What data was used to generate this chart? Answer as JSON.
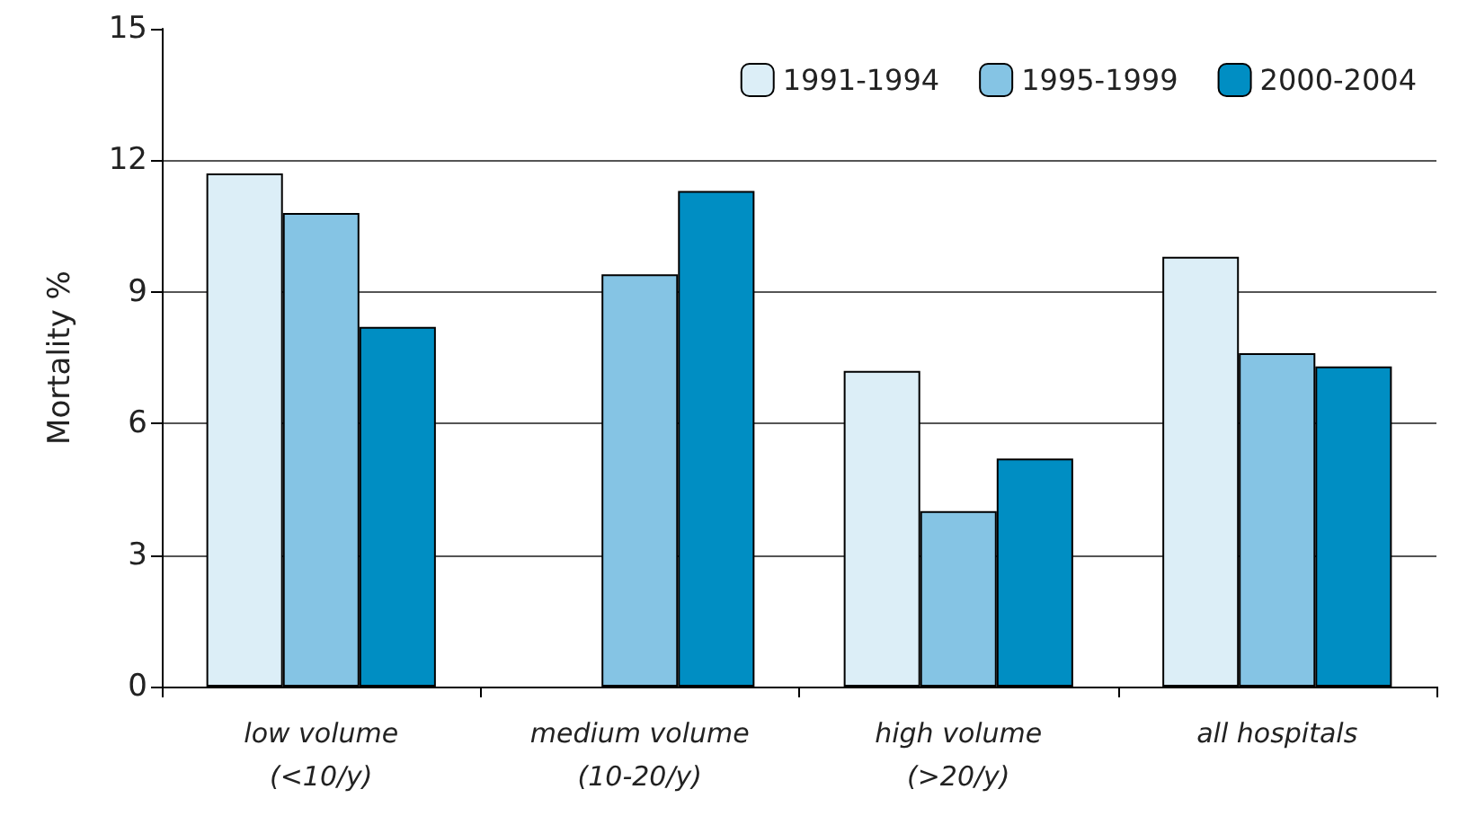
{
  "chart_data": {
    "type": "bar",
    "ylabel": "Mortality %",
    "categories": [
      "low volume\n(<10/y)",
      "medium volume\n(10-20/y)",
      "high volume\n(>20/y)",
      "all hospitals"
    ],
    "series": [
      {
        "name": "1991-1994",
        "color": "#dceef7",
        "values": [
          11.7,
          null,
          7.2,
          9.8
        ]
      },
      {
        "name": "1995-1999",
        "color": "#85c4e4",
        "values": [
          10.8,
          9.4,
          4.0,
          7.6
        ]
      },
      {
        "name": "2000-2004",
        "color": "#008ec3",
        "values": [
          8.2,
          11.3,
          5.2,
          7.3
        ]
      }
    ],
    "ylim": [
      0,
      15
    ],
    "yticks": [
      0,
      3,
      6,
      9,
      12,
      15
    ],
    "grid": "y",
    "legend": "top right"
  }
}
